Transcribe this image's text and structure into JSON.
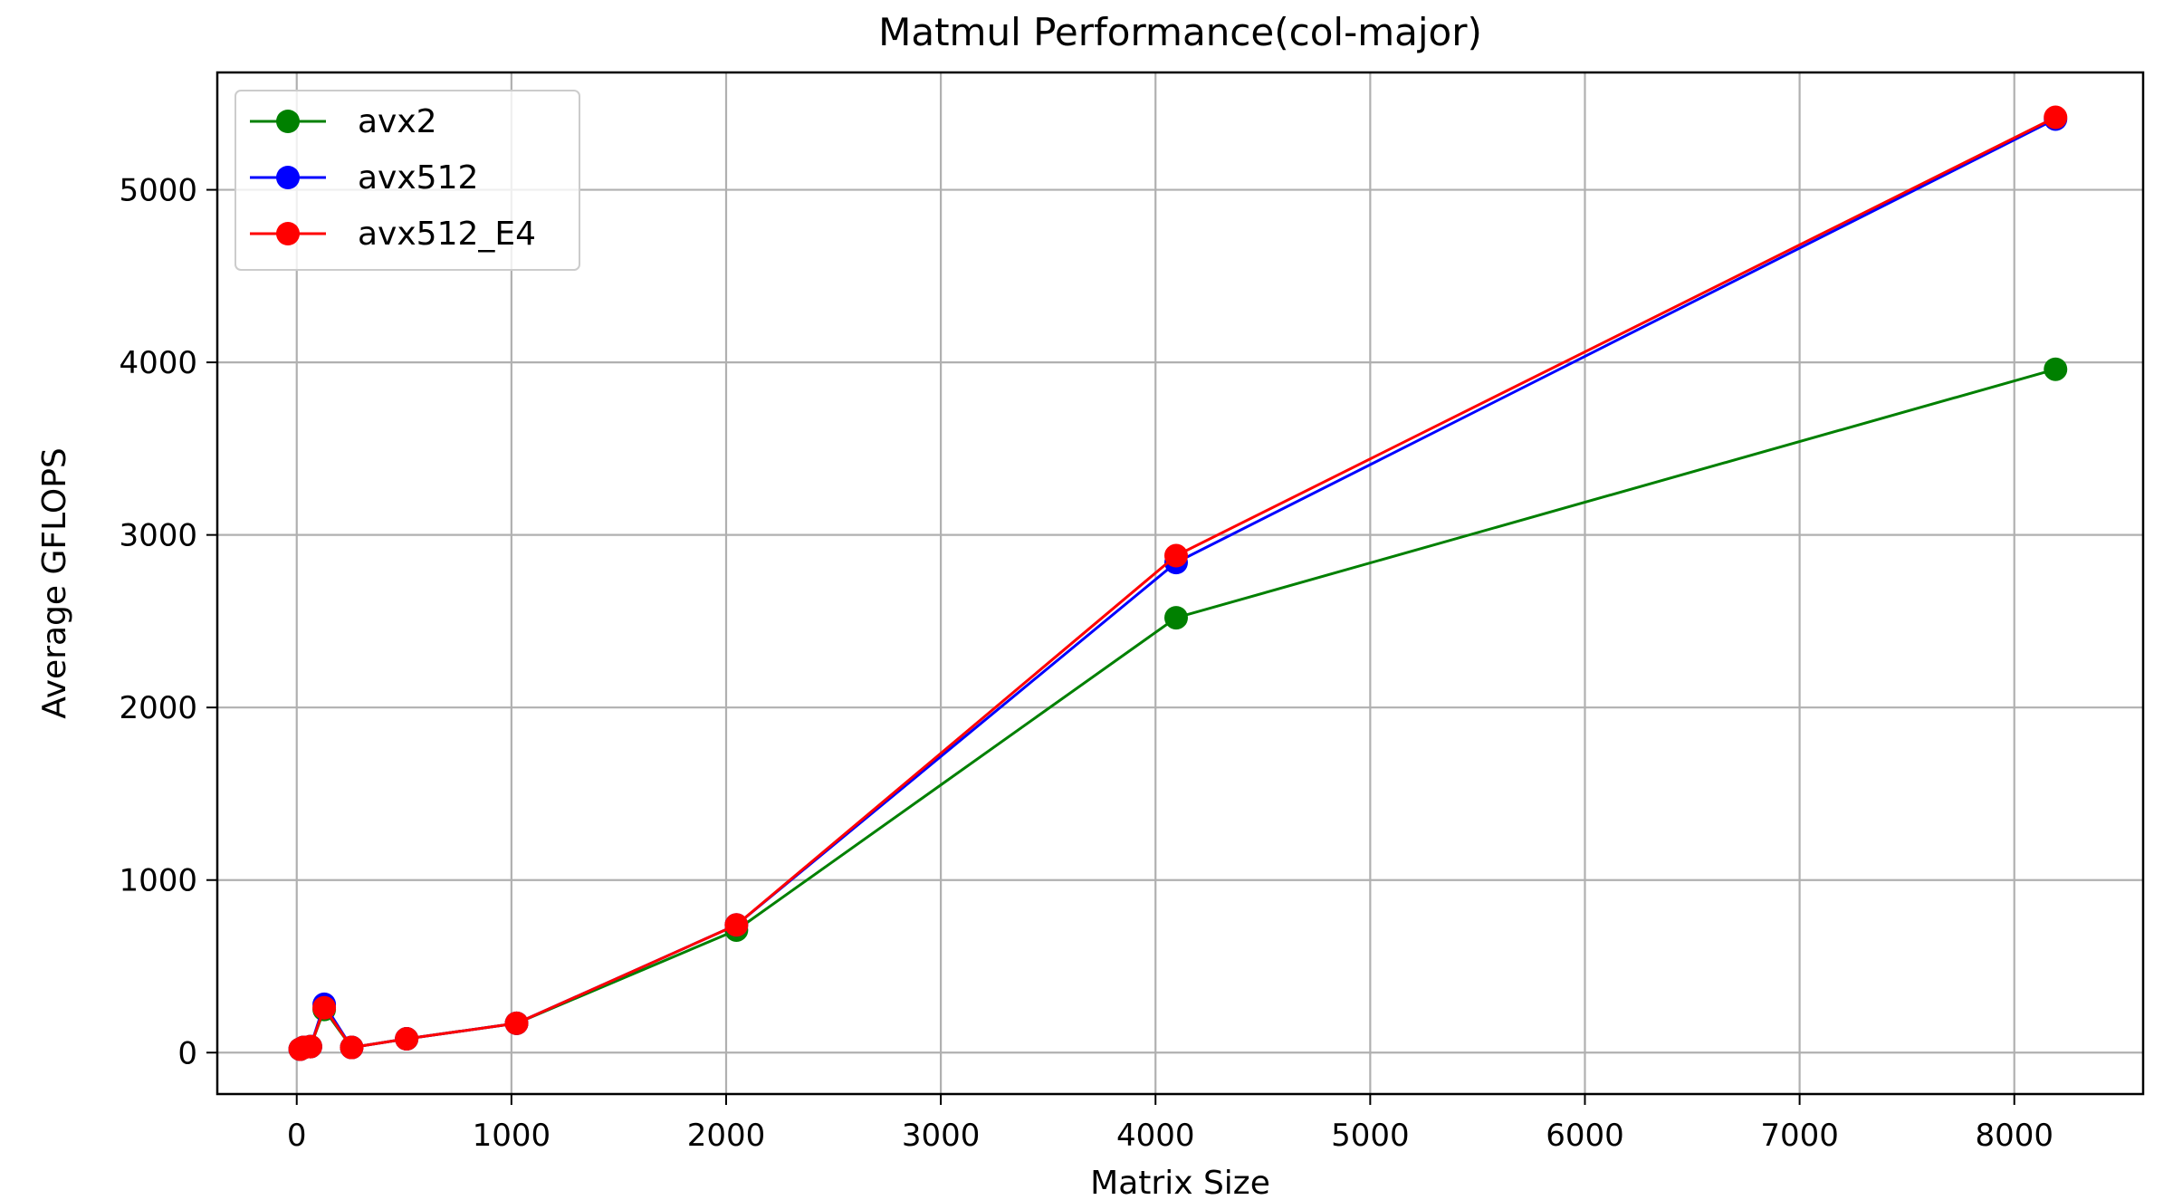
{
  "chart_data": {
    "type": "line",
    "title": "Matmul Performance(col-major)",
    "xlabel": "Matrix Size",
    "ylabel": "Average GFLOPS",
    "xlim": [
      -370,
      8600
    ],
    "ylim": [
      -240,
      5680
    ],
    "xticks": [
      0,
      1000,
      2000,
      3000,
      4000,
      5000,
      6000,
      7000,
      8000
    ],
    "yticks": [
      0,
      1000,
      2000,
      3000,
      4000,
      5000
    ],
    "grid": true,
    "legend_position": "top-left",
    "x": [
      16,
      32,
      64,
      128,
      256,
      512,
      1024,
      2048,
      4096,
      8192
    ],
    "series": [
      {
        "name": "avx2",
        "color": "#008000",
        "marker": "circle",
        "values": [
          20,
          30,
          35,
          250,
          30,
          80,
          170,
          710,
          2520,
          3960
        ]
      },
      {
        "name": "avx512",
        "color": "#0000ff",
        "marker": "circle",
        "values": [
          20,
          30,
          35,
          280,
          30,
          80,
          170,
          740,
          2840,
          5410
        ]
      },
      {
        "name": "avx512_E4",
        "color": "#ff0000",
        "marker": "circle",
        "values": [
          20,
          30,
          35,
          260,
          30,
          80,
          170,
          740,
          2880,
          5420
        ]
      }
    ]
  }
}
